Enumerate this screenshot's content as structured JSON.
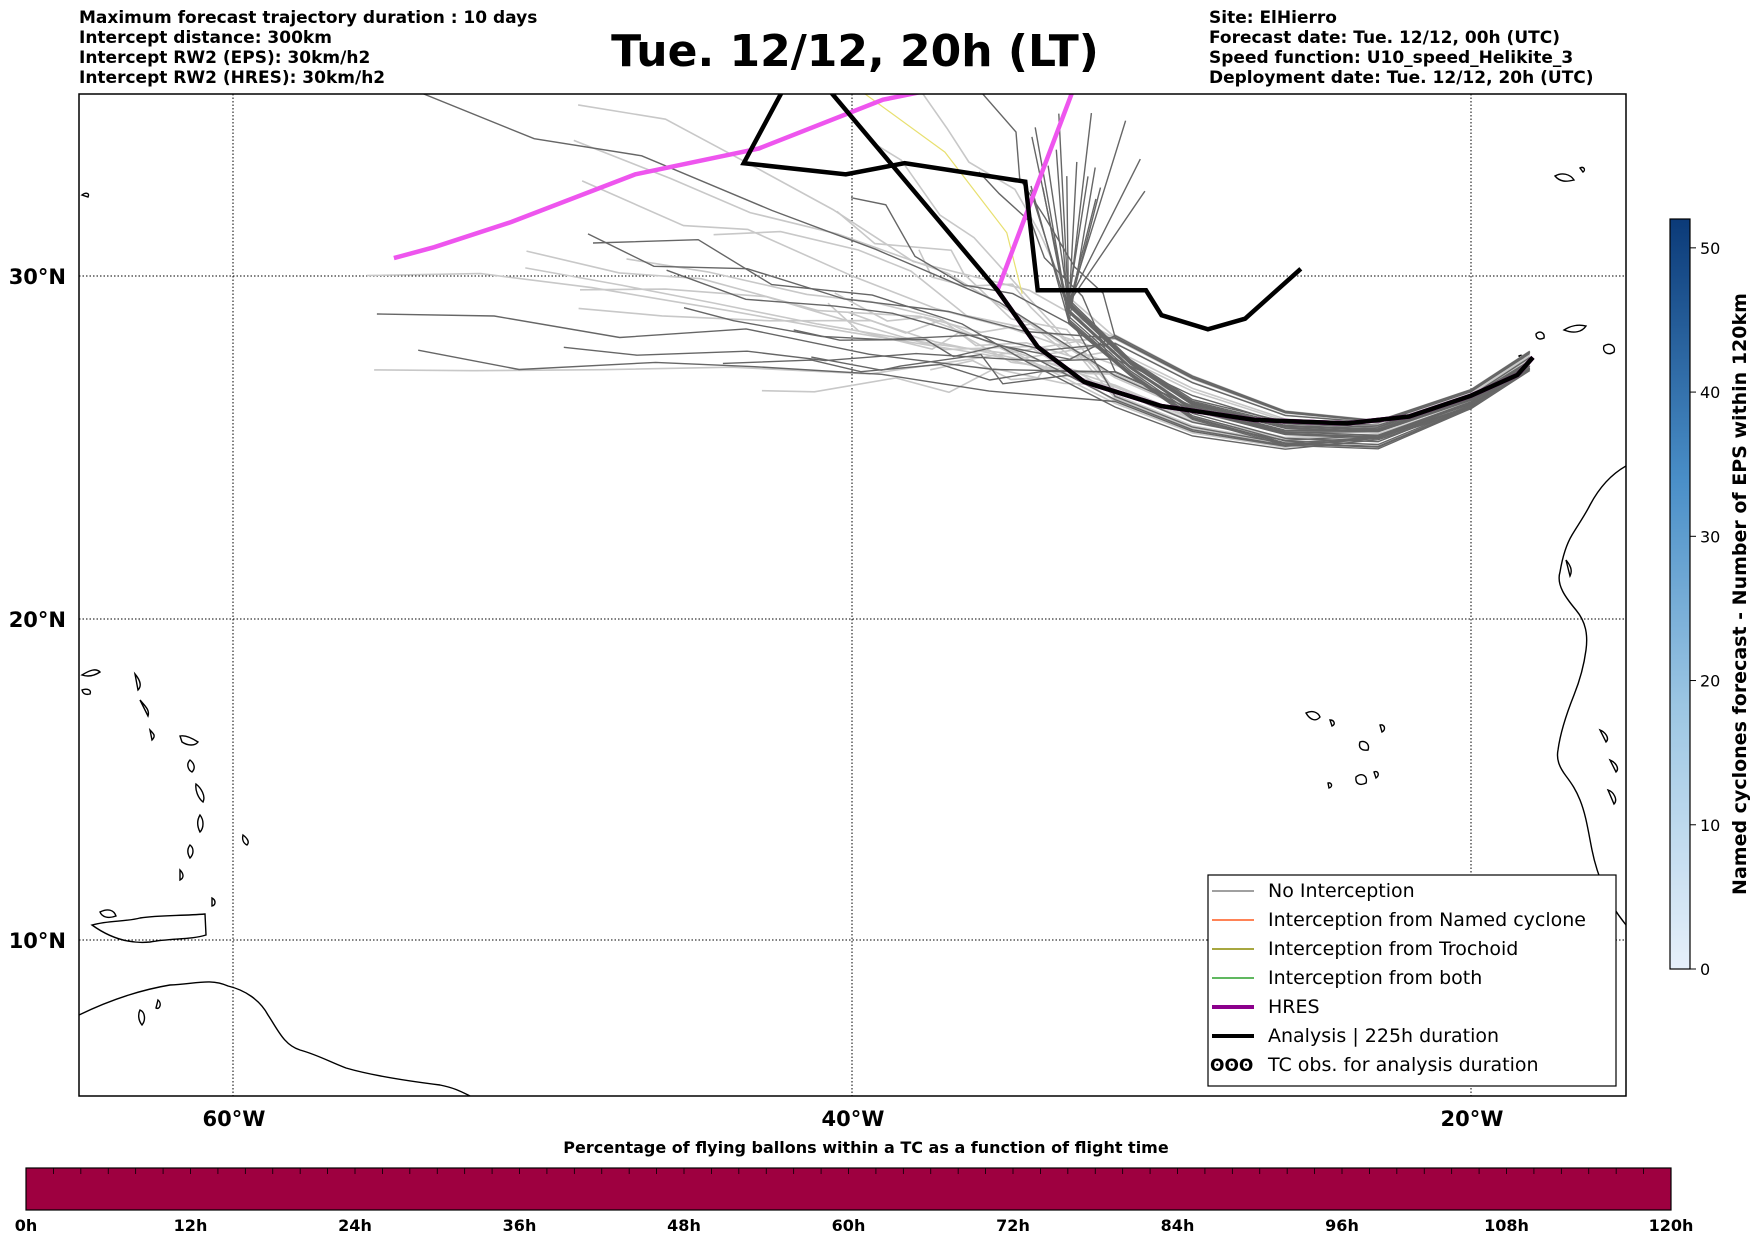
{
  "title": "Tue. 12/12, 20h (LT)",
  "header_left": [
    "Maximum forecast trajectory duration : 10 days",
    "Intercept distance: 300km",
    "Intercept RW2 (EPS):  30km/h2",
    "Intercept RW2 (HRES): 30km/h2"
  ],
  "header_right": [
    "Site: ElHierro",
    "Forecast date: Tue. 12/12, 00h (UTC)",
    "Speed function: U10_speed_Helikite_3",
    "Deployment date: Tue. 12/12, 20h (UTC)"
  ],
  "map": {
    "lat_labels": [
      "30°N",
      "20°N",
      "10°N"
    ],
    "lon_labels": [
      "60°W",
      "40°W",
      "20°W"
    ],
    "lat_range": [
      5.4,
      34.6
    ],
    "lon_range": [
      -65,
      -15
    ],
    "site": {
      "name": "ElHierro",
      "lon": -18,
      "lat": 27.7
    }
  },
  "tracks": {
    "hres": [
      [
        -30.5,
        40.0
      ],
      [
        -33.5,
        38.5
      ],
      [
        -35.5,
        37.0
      ],
      [
        -36.0,
        35.3
      ],
      [
        -39.0,
        34.8
      ],
      [
        -43.0,
        33.5
      ],
      [
        -47.0,
        32.8
      ],
      [
        -51.0,
        31.5
      ],
      [
        -53.5,
        30.8
      ],
      [
        -54.8,
        30.5
      ]
    ],
    "analysis": [
      [
        -46.0,
        40.0
      ],
      [
        -42.2,
        35.1
      ],
      [
        -43.5,
        33.1
      ],
      [
        -40.2,
        32.8
      ],
      [
        -38.3,
        33.1
      ],
      [
        -34.4,
        32.6
      ],
      [
        -34.0,
        29.6
      ],
      [
        -30.5,
        29.6
      ],
      [
        -30.0,
        28.9
      ],
      [
        -28.5,
        28.5
      ],
      [
        -27.3,
        28.8
      ],
      [
        -25.5,
        30.2
      ]
    ],
    "common": [
      [
        -18.0,
        27.7
      ],
      [
        -18.5,
        27.2
      ],
      [
        -20.0,
        26.6
      ],
      [
        -22.0,
        26.0
      ],
      [
        -24.0,
        25.8
      ],
      [
        -27.0,
        25.9
      ],
      [
        -30.0,
        26.3
      ],
      [
        -32.5,
        27.0
      ],
      [
        -34.0,
        28.0
      ],
      [
        -35.3,
        29.6
      ]
    ]
  },
  "legend": {
    "items": [
      {
        "label": "No Interception",
        "color": "#808080",
        "style": "line-thin"
      },
      {
        "label": "Interception from Named cyclone",
        "color": "#ff5a1f",
        "style": "line-thin"
      },
      {
        "label": "Interception from Trochoid",
        "color": "#8a8a00",
        "style": "line-thin"
      },
      {
        "label": "Interception from both",
        "color": "#2ca02c",
        "style": "line-thin"
      },
      {
        "label": "HRES",
        "color": "#8b008b",
        "style": "line-thick"
      },
      {
        "label": "Analysis | 225h duration",
        "color": "#000000",
        "style": "line-thick"
      },
      {
        "label": "TC obs. for analysis duration",
        "color": "#000000",
        "style": "cyclone-icons"
      }
    ]
  },
  "colorbar_right": {
    "label": "Named cyclones forecast - Number of EPS within 120km",
    "ticks": [
      "0",
      "10",
      "20",
      "30",
      "40",
      "50"
    ],
    "min": 0,
    "max": 52,
    "color_low": "#e6f0fa",
    "color_high": "#0b3a78"
  },
  "colorbar_bottom": {
    "title": "Percentage of flying ballons within a TC as a function of flight time",
    "ticks": [
      "0h",
      "12h",
      "24h",
      "36h",
      "48h",
      "60h",
      "72h",
      "84h",
      "96h",
      "108h",
      "120h"
    ],
    "fill_color": "#9e0040"
  },
  "colors": {
    "hres": "#ee55ee",
    "hres_overlap": "#8b008b",
    "analysis": "#000000",
    "eps_no_intercept": "#666666",
    "eps_no_intercept_light": "#c8c8c8",
    "trochoid": "#e8e070"
  }
}
